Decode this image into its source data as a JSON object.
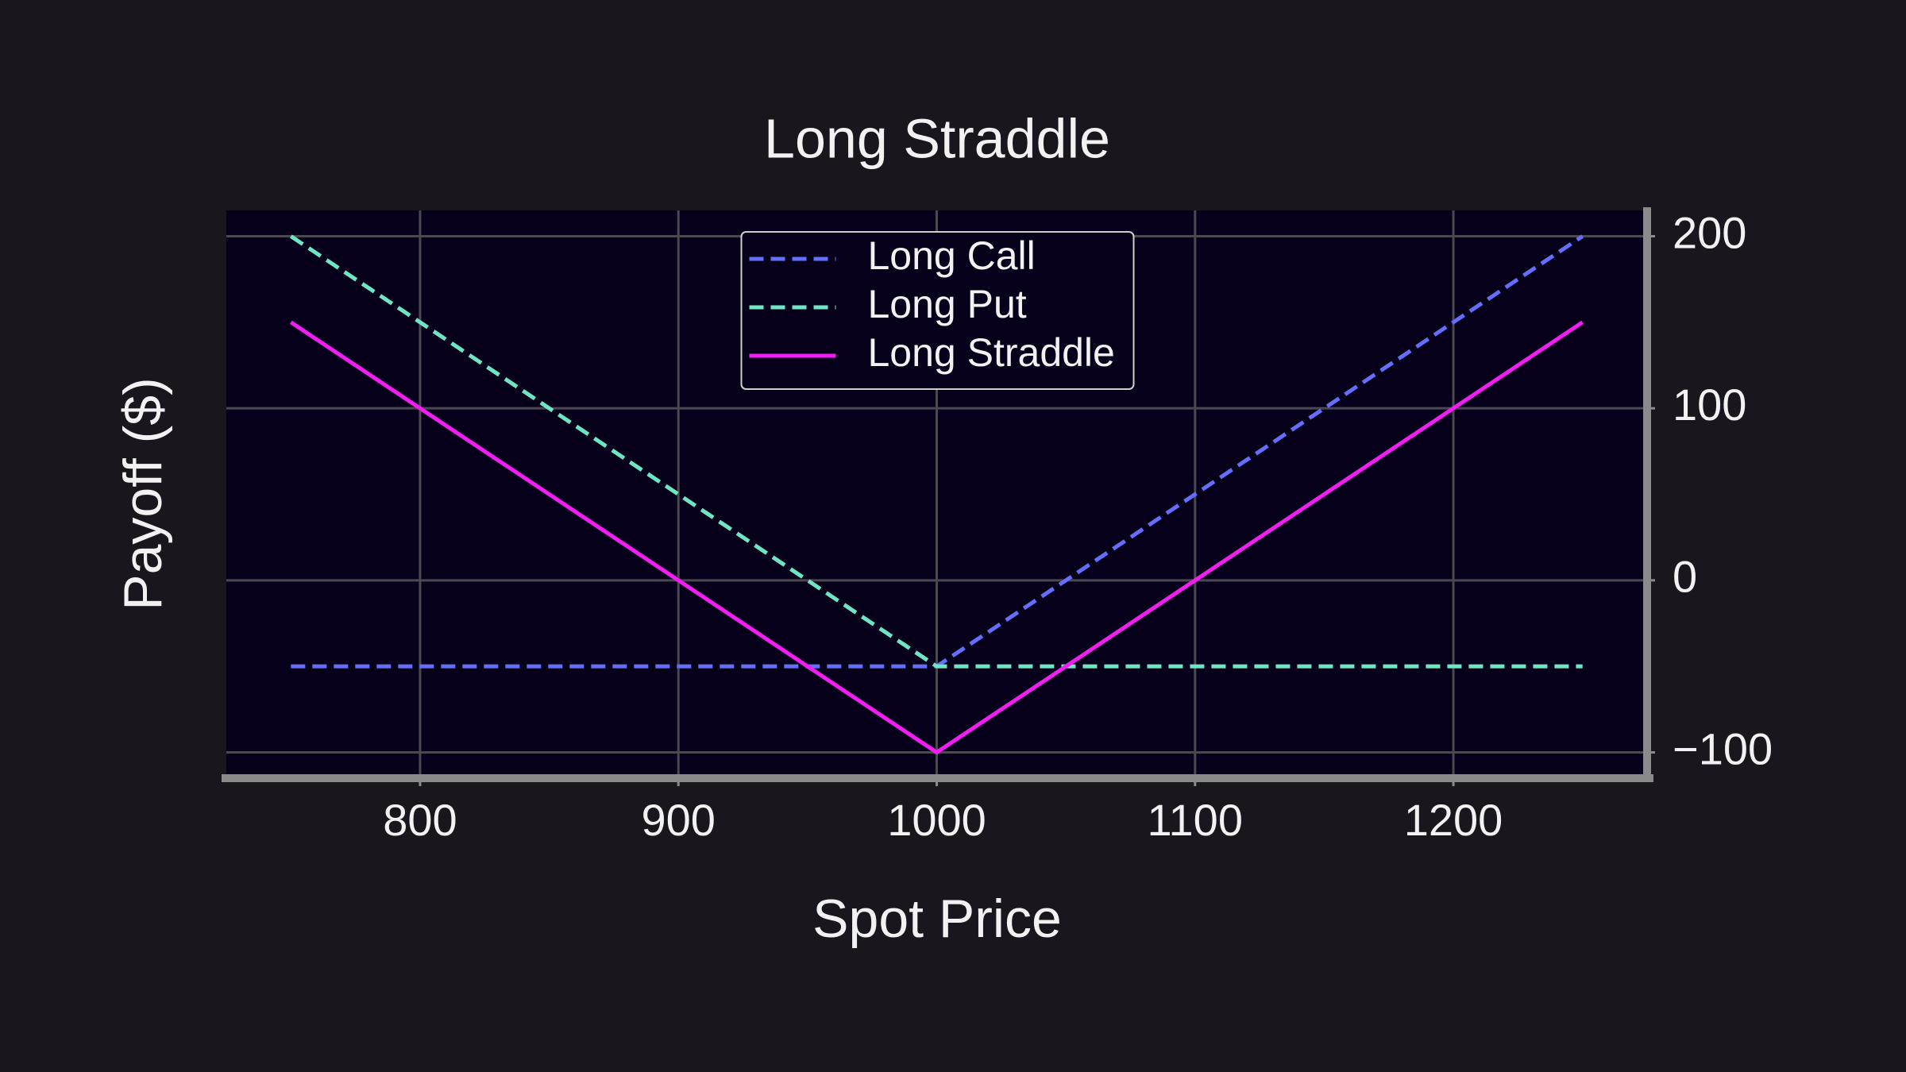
{
  "chart_data": {
    "type": "line",
    "title": "Long Straddle",
    "x_label": "Spot Price",
    "y_label": "Payoff ($)",
    "x": [
      750,
      1000,
      1250
    ],
    "series": [
      {
        "name": "Long Call",
        "color": "#636efa",
        "dashed": true,
        "values": [
          -50,
          -50,
          200
        ]
      },
      {
        "name": "Long Put",
        "color": "#6fe6c3",
        "dashed": true,
        "values": [
          200,
          -50,
          -50
        ]
      },
      {
        "name": "Long Straddle",
        "color": "#f01ef0",
        "dashed": false,
        "values": [
          150,
          -100,
          150
        ]
      }
    ],
    "xlim": [
      725,
      1275
    ],
    "ylim": [
      -115,
      215
    ],
    "xticks": [
      800,
      900,
      1000,
      1100,
      1200
    ],
    "yticks": [
      {
        "value": -100,
        "label": "−100"
      },
      0,
      100,
      200
    ],
    "y_axis_side": "right",
    "grid": true,
    "legend": "upper center"
  }
}
